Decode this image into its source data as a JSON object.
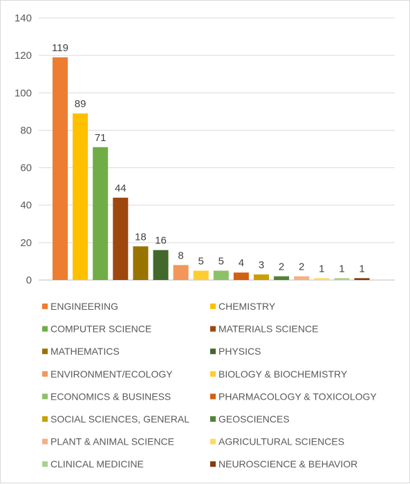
{
  "chart_data": {
    "type": "bar",
    "title": "",
    "xlabel": "",
    "ylabel": "",
    "ylim": [
      0,
      140
    ],
    "yticks": [
      0,
      20,
      40,
      60,
      80,
      100,
      120,
      140
    ],
    "grid": true,
    "legend_position": "bottom",
    "categories": [
      "ENGINEERING",
      "CHEMISTRY",
      "COMPUTER SCIENCE",
      "MATERIALS SCIENCE",
      "MATHEMATICS",
      "PHYSICS",
      "ENVIRONMENT/ECOLOGY",
      "BIOLOGY & BIOCHEMISTRY",
      "ECONOMICS & BUSINESS",
      "PHARMACOLOGY & TOXICOLOGY",
      "SOCIAL SCIENCES, GENERAL",
      "GEOSCIENCES",
      "PLANT & ANIMAL SCIENCE",
      "AGRICULTURAL SCIENCES",
      "CLINICAL MEDICINE",
      "NEUROSCIENCE & BEHAVIOR"
    ],
    "values": [
      119,
      89,
      71,
      44,
      18,
      16,
      8,
      5,
      5,
      4,
      3,
      2,
      2,
      1,
      1,
      1
    ],
    "colors": [
      "#ED7D31",
      "#FFC000",
      "#70AD47",
      "#9E480E",
      "#997300",
      "#43682B",
      "#F1975A",
      "#FFCD33",
      "#8CC168",
      "#D26012",
      "#C9A000",
      "#548235",
      "#F4B183",
      "#FFD966",
      "#A9D18E",
      "#843C0C"
    ]
  }
}
